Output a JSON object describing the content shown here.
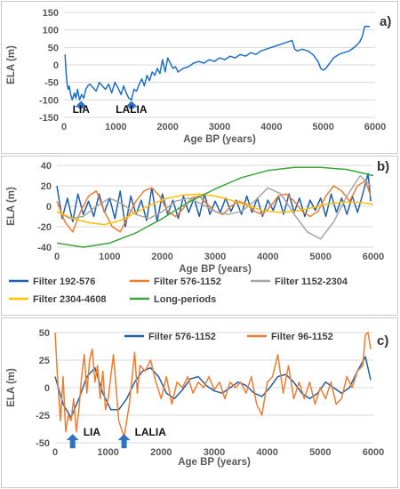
{
  "chart_data": [
    {
      "type": "line",
      "panel_label": "a)",
      "xlabel": "Age BP (years)",
      "ylabel": "ELA (m)",
      "xlim": [
        0,
        6000
      ],
      "ylim": [
        -150,
        150
      ],
      "xticks": [
        0,
        1000,
        2000,
        3000,
        4000,
        5000,
        6000
      ],
      "yticks": [
        -150,
        -100,
        -50,
        0,
        50,
        100,
        150
      ],
      "grid": "horizontal",
      "annotations": [
        {
          "text": "LIA",
          "x": 330,
          "y": -130
        },
        {
          "text": "LALIA",
          "x": 1300,
          "y": -130
        }
      ],
      "series": [
        {
          "color": "#1f6fc5",
          "x": [
            20,
            40,
            60,
            80,
            100,
            130,
            160,
            200,
            230,
            260,
            300,
            340,
            380,
            420,
            460,
            500,
            560,
            620,
            680,
            740,
            800,
            860,
            920,
            980,
            1040,
            1100,
            1150,
            1200,
            1250,
            1300,
            1350,
            1400,
            1450,
            1500,
            1550,
            1600,
            1650,
            1700,
            1750,
            1800,
            1850,
            1900,
            1950,
            2000,
            2050,
            2100,
            2150,
            2200,
            2300,
            2400,
            2500,
            2600,
            2700,
            2800,
            2900,
            3000,
            3100,
            3200,
            3300,
            3400,
            3500,
            3600,
            3700,
            3800,
            3900,
            4000,
            4100,
            4200,
            4300,
            4400,
            4450,
            4500,
            4600,
            4700,
            4800,
            4900,
            4950,
            5000,
            5050,
            5100,
            5200,
            5300,
            5400,
            5500,
            5600,
            5700,
            5750,
            5800,
            5900
          ],
          "y": [
            30,
            -20,
            -55,
            -70,
            -60,
            -85,
            -100,
            -80,
            -95,
            -70,
            -100,
            -85,
            -95,
            -70,
            -60,
            -55,
            -65,
            -75,
            -50,
            -60,
            -70,
            -55,
            -80,
            -50,
            -65,
            -85,
            -60,
            -80,
            -95,
            -100,
            -70,
            -75,
            -55,
            -40,
            -60,
            -30,
            -45,
            -20,
            -30,
            -10,
            -25,
            15,
            -20,
            20,
            5,
            -10,
            -5,
            -20,
            -10,
            -5,
            5,
            10,
            5,
            15,
            10,
            20,
            15,
            25,
            20,
            30,
            25,
            35,
            30,
            40,
            45,
            50,
            55,
            60,
            65,
            70,
            45,
            40,
            45,
            40,
            30,
            10,
            -10,
            -15,
            -10,
            0,
            20,
            30,
            35,
            40,
            50,
            65,
            80,
            110,
            110
          ]
        }
      ]
    },
    {
      "type": "line",
      "panel_label": "b)",
      "xlabel": "Age BP (years)",
      "ylabel": "ELA (m)",
      "xlim": [
        0,
        6000
      ],
      "ylim": [
        -40,
        40
      ],
      "xticks": [
        0,
        1000,
        2000,
        3000,
        4000,
        5000,
        6000
      ],
      "yticks": [
        -40,
        -20,
        0,
        20,
        40
      ],
      "grid": "horizontal",
      "legend": "bottom",
      "series": [
        {
          "name": "Filter 192-576",
          "color": "#1f5fae",
          "x": [
            0,
            100,
            200,
            300,
            400,
            500,
            600,
            700,
            800,
            900,
            1000,
            1100,
            1200,
            1300,
            1400,
            1500,
            1600,
            1700,
            1800,
            1900,
            2000,
            2100,
            2200,
            2300,
            2400,
            2500,
            2600,
            2700,
            2800,
            2900,
            3000,
            3100,
            3200,
            3300,
            3400,
            3500,
            3600,
            3700,
            3800,
            3900,
            4000,
            4100,
            4200,
            4300,
            4400,
            4500,
            4600,
            4700,
            4800,
            4900,
            5000,
            5100,
            5200,
            5300,
            5400,
            5500,
            5600,
            5700,
            5800,
            5900,
            5950
          ],
          "y": [
            20,
            -12,
            8,
            -15,
            12,
            -8,
            5,
            -10,
            12,
            -6,
            8,
            -12,
            15,
            -20,
            10,
            -8,
            6,
            -14,
            18,
            -15,
            12,
            -8,
            6,
            -12,
            10,
            -6,
            8,
            -10,
            12,
            -8,
            5,
            -6,
            8,
            -5,
            6,
            -8,
            10,
            -6,
            8,
            -10,
            6,
            -4,
            10,
            -8,
            12,
            -6,
            8,
            -10,
            6,
            -4,
            8,
            -10,
            12,
            -6,
            8,
            -8,
            10,
            -6,
            12,
            32,
            5
          ]
        },
        {
          "name": "Filter 576-1152",
          "color": "#ed7d31",
          "x": [
            0,
            150,
            300,
            450,
            600,
            750,
            900,
            1050,
            1200,
            1350,
            1500,
            1650,
            1800,
            1950,
            2100,
            2250,
            2400,
            2550,
            2700,
            2850,
            3000,
            3150,
            3300,
            3450,
            3600,
            3750,
            3900,
            4050,
            4200,
            4350,
            4500,
            4650,
            4800,
            4950,
            5100,
            5250,
            5400,
            5550,
            5700,
            5850,
            5950
          ],
          "y": [
            5,
            -15,
            -25,
            -5,
            10,
            15,
            -5,
            -20,
            -25,
            -10,
            5,
            15,
            18,
            10,
            -5,
            -10,
            -2,
            8,
            10,
            2,
            -5,
            -8,
            0,
            5,
            2,
            -5,
            -8,
            0,
            10,
            12,
            5,
            -5,
            -10,
            -5,
            10,
            20,
            15,
            5,
            20,
            25,
            10
          ]
        },
        {
          "name": "Filter 1152-2304",
          "color": "#a5a5a5",
          "x": [
            0,
            250,
            500,
            750,
            1000,
            1250,
            1500,
            1750,
            2000,
            2250,
            2500,
            2750,
            3000,
            3250,
            3500,
            3750,
            4000,
            4250,
            4500,
            4750,
            5000,
            5250,
            5500,
            5750,
            5950
          ],
          "y": [
            -5,
            -12,
            -10,
            0,
            8,
            2,
            -8,
            -12,
            -5,
            5,
            8,
            2,
            -5,
            -8,
            -5,
            5,
            18,
            12,
            -8,
            -25,
            -32,
            -15,
            10,
            30,
            20
          ]
        },
        {
          "name": "Filter 2304-4608",
          "color": "#ffc000",
          "x": [
            0,
            300,
            600,
            900,
            1200,
            1500,
            1800,
            2100,
            2400,
            2700,
            3000,
            3300,
            3600,
            3900,
            4200,
            4500,
            4800,
            5100,
            5400,
            5700,
            6000
          ],
          "y": [
            -5,
            -12,
            -16,
            -18,
            -14,
            -6,
            2,
            8,
            11,
            12,
            10,
            6,
            1,
            -4,
            -6,
            -5,
            -2,
            2,
            4,
            4,
            2
          ]
        },
        {
          "name": "Long-periods",
          "color": "#3ca43c",
          "x": [
            0,
            500,
            1000,
            1500,
            2000,
            2500,
            3000,
            3500,
            4000,
            4500,
            5000,
            5500,
            6000
          ],
          "y": [
            -36,
            -40,
            -36,
            -26,
            -12,
            4,
            17,
            28,
            35,
            38,
            38,
            36,
            30
          ]
        }
      ]
    },
    {
      "type": "line",
      "panel_label": "c)",
      "xlabel": "Age BP (years)",
      "ylabel": "ELA (m)",
      "xlim": [
        0,
        6000
      ],
      "ylim": [
        -50,
        50
      ],
      "xticks": [
        0,
        1000,
        2000,
        3000,
        4000,
        5000,
        6000
      ],
      "yticks": [
        -50,
        -25,
        0,
        25,
        50
      ],
      "grid": "horizontal",
      "legend": "top",
      "annotations": [
        {
          "text": "LIA",
          "x": 330,
          "y": -45
        },
        {
          "text": "LALIA",
          "x": 1300,
          "y": -45
        }
      ],
      "series": [
        {
          "name": "Filter 576-1152",
          "color": "#1f5fae",
          "x": [
            0,
            150,
            300,
            450,
            600,
            750,
            900,
            1050,
            1200,
            1350,
            1500,
            1650,
            1800,
            1950,
            2100,
            2250,
            2400,
            2550,
            2700,
            2850,
            3000,
            3150,
            3300,
            3450,
            3600,
            3750,
            3900,
            4050,
            4200,
            4350,
            4500,
            4650,
            4800,
            4950,
            5100,
            5250,
            5400,
            5550,
            5700,
            5850,
            5950
          ],
          "y": [
            10,
            -15,
            -27,
            -10,
            10,
            18,
            -5,
            -20,
            -20,
            -10,
            5,
            15,
            18,
            10,
            -5,
            -10,
            -2,
            8,
            10,
            2,
            -3,
            -5,
            0,
            5,
            2,
            -5,
            -8,
            0,
            10,
            12,
            5,
            -5,
            -10,
            -5,
            5,
            0,
            -5,
            0,
            15,
            28,
            7
          ]
        },
        {
          "name": "Filter 96-1152",
          "color": "#ed7d31",
          "x": [
            0,
            50,
            100,
            150,
            200,
            250,
            300,
            350,
            400,
            450,
            500,
            550,
            600,
            650,
            700,
            750,
            800,
            850,
            900,
            950,
            1000,
            1100,
            1200,
            1300,
            1400,
            1500,
            1550,
            1600,
            1700,
            1800,
            1900,
            2000,
            2100,
            2200,
            2300,
            2400,
            2500,
            2600,
            2700,
            2800,
            2900,
            3000,
            3100,
            3200,
            3300,
            3400,
            3500,
            3600,
            3700,
            3800,
            3900,
            4000,
            4100,
            4200,
            4300,
            4400,
            4500,
            4600,
            4700,
            4800,
            4900,
            5000,
            5100,
            5200,
            5300,
            5400,
            5500,
            5600,
            5700,
            5800,
            5850,
            5900,
            5950
          ],
          "y": [
            50,
            5,
            -30,
            10,
            -40,
            -25,
            -30,
            -10,
            -40,
            -20,
            10,
            30,
            -5,
            25,
            35,
            5,
            20,
            -10,
            15,
            -20,
            -10,
            30,
            -30,
            -45,
            -15,
            32,
            -5,
            20,
            15,
            25,
            5,
            -10,
            10,
            -15,
            5,
            0,
            10,
            -5,
            5,
            0,
            10,
            -2,
            5,
            -10,
            5,
            0,
            5,
            -5,
            10,
            -15,
            -25,
            5,
            10,
            30,
            -5,
            20,
            -10,
            5,
            -10,
            5,
            -15,
            0,
            -10,
            5,
            -15,
            -10,
            10,
            0,
            15,
            20,
            48,
            50,
            35
          ]
        }
      ]
    }
  ]
}
